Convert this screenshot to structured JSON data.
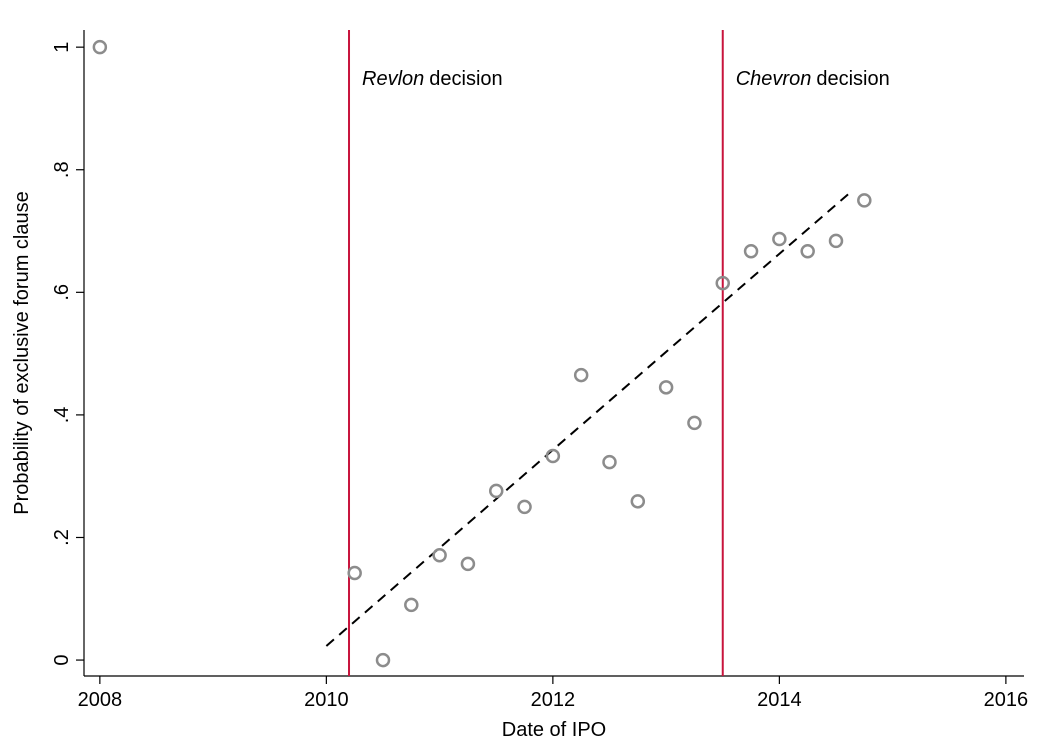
{
  "chart_data": {
    "type": "scatter",
    "x_label": "Date of IPO",
    "y_label": "Probability of exclusive forum clause",
    "xlim": [
      2007.86,
      2016.16
    ],
    "ylim": [
      -0.026,
      1.028
    ],
    "xticks": [
      2008,
      2010,
      2012,
      2014,
      2016
    ],
    "yticks": [
      0,
      {
        "value": 0.2,
        "label": ".2"
      },
      {
        "value": 0.4,
        "label": ".4"
      },
      {
        "value": 0.6,
        "label": ".6"
      },
      {
        "value": 0.8,
        "label": ".8"
      },
      1
    ],
    "grid": false,
    "color": "#8c8c8c",
    "x": [
      2008,
      2010.25,
      2010.5,
      2010.75,
      2011,
      2011.25,
      2011.5,
      2011.75,
      2012,
      2012.25,
      2012.5,
      2012.75,
      2013,
      2013.25,
      2013.5,
      2013.75,
      2014,
      2014.25,
      2014.5,
      2014.75
    ],
    "values": [
      1.0,
      0.142,
      0.0,
      0.09,
      0.171,
      0.157,
      0.276,
      0.25,
      0.333,
      0.465,
      0.323,
      0.259,
      0.445,
      0.387,
      0.615,
      0.667,
      0.687,
      0.667,
      0.684,
      0.75
    ],
    "fit": {
      "x": [
        2010.0,
        2014.62
      ],
      "y": [
        0.023,
        0.762
      ],
      "color": "#000000"
    },
    "annotations": [
      {
        "x": 2010.2,
        "emphasis": "Revlon",
        "text": "decision",
        "color": "#c8143c"
      },
      {
        "x": 2013.5,
        "emphasis": "Chevron",
        "text": "decision",
        "color": "#c8143c"
      }
    ]
  }
}
